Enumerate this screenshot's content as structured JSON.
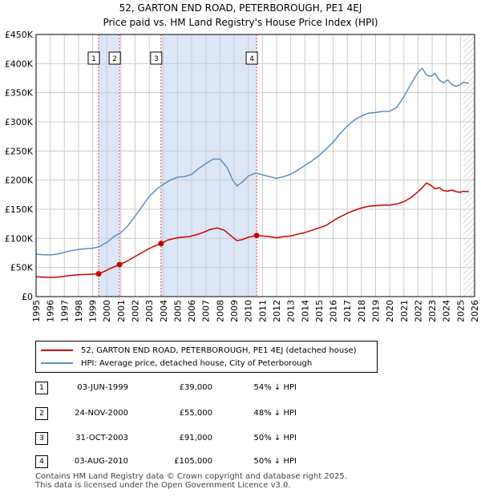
{
  "title_line1": "52, GARTON END ROAD, PETERBOROUGH, PE1 4EJ",
  "title_line2": "Price paid vs. HM Land Registry's House Price Index (HPI)",
  "colors": {
    "property": "#cc0000",
    "hpi": "#5b8ec2",
    "shade": "#dde6f7",
    "marker_line": "#cc0000",
    "grid": "#cccccc"
  },
  "chart_data": {
    "type": "line",
    "x_range": [
      1995,
      2026
    ],
    "ylim": [
      0,
      450000
    ],
    "y_ticks": [
      0,
      50000,
      100000,
      150000,
      200000,
      250000,
      300000,
      350000,
      400000,
      450000
    ],
    "y_tick_labels": [
      "£0",
      "£50K",
      "£100K",
      "£150K",
      "£200K",
      "£250K",
      "£300K",
      "£350K",
      "£400K",
      "£450K"
    ],
    "x_ticks": [
      1995,
      1996,
      1997,
      1998,
      1999,
      2000,
      2001,
      2002,
      2003,
      2004,
      2005,
      2006,
      2007,
      2008,
      2009,
      2010,
      2011,
      2012,
      2013,
      2014,
      2015,
      2016,
      2017,
      2018,
      2019,
      2020,
      2021,
      2022,
      2023,
      2024,
      2025,
      2026
    ],
    "shaded_periods": [
      [
        1999.42,
        2000.9
      ],
      [
        2003.83,
        2010.59
      ]
    ],
    "hatched_from": 2025.2,
    "sale_markers": [
      {
        "label": "1",
        "x": 1999.42,
        "y": 39000
      },
      {
        "label": "2",
        "x": 2000.9,
        "y": 55000
      },
      {
        "label": "3",
        "x": 2003.83,
        "y": 91000
      },
      {
        "label": "4",
        "x": 2010.59,
        "y": 105000
      }
    ],
    "series": [
      {
        "name": "52, GARTON END ROAD, PETERBOROUGH, PE1 4EJ (detached house)",
        "color": "#cc0000",
        "x": [
          1995,
          1995.5,
          1996,
          1996.5,
          1997,
          1997.5,
          1998,
          1998.5,
          1999,
          1999.42,
          1999.8,
          2000.3,
          2000.9,
          2001.3,
          2001.8,
          2002.3,
          2002.8,
          2003.3,
          2003.83,
          2004.3,
          2004.8,
          2005.3,
          2005.8,
          2006.3,
          2006.8,
          2007.3,
          2007.8,
          2008.3,
          2008.8,
          2009.2,
          2009.6,
          2010,
          2010.59,
          2011,
          2011.5,
          2012,
          2012.5,
          2013,
          2013.5,
          2014,
          2014.5,
          2015,
          2015.5,
          2016,
          2016.5,
          2017,
          2017.5,
          2018,
          2018.5,
          2019,
          2019.5,
          2020,
          2020.5,
          2021,
          2021.5,
          2022,
          2022.3,
          2022.6,
          2022.9,
          2023.2,
          2023.5,
          2023.8,
          2024.1,
          2024.4,
          2024.7,
          2025,
          2025.2,
          2025.6
        ],
        "values": [
          34000,
          33500,
          33000,
          33500,
          35000,
          36500,
          37500,
          38000,
          38500,
          39000,
          43000,
          49000,
          55000,
          59000,
          66000,
          73000,
          80000,
          86000,
          91000,
          97000,
          100000,
          102000,
          103000,
          106000,
          110000,
          115000,
          118000,
          114000,
          104000,
          96000,
          98000,
          102000,
          105000,
          104000,
          103000,
          101000,
          103000,
          104000,
          107000,
          110000,
          114000,
          118000,
          122000,
          130000,
          137000,
          143000,
          148000,
          152000,
          155000,
          156000,
          157000,
          157000,
          159000,
          163000,
          170000,
          180000,
          187000,
          195000,
          191000,
          185000,
          187000,
          182000,
          181000,
          183000,
          180000,
          179000,
          181000,
          180000
        ]
      },
      {
        "name": "HPI: Average price, detached house, City of Peterborough",
        "color": "#5b8ec2",
        "x": [
          1995,
          1995.5,
          1996,
          1996.5,
          1997,
          1997.5,
          1998,
          1998.5,
          1999,
          1999.5,
          2000,
          2000.5,
          2001,
          2001.5,
          2002,
          2002.5,
          2003,
          2003.5,
          2004,
          2004.5,
          2005,
          2005.5,
          2006,
          2006.5,
          2007,
          2007.5,
          2008,
          2008.5,
          2008.9,
          2009.2,
          2009.6,
          2010,
          2010.5,
          2011,
          2011.5,
          2012,
          2012.5,
          2013,
          2013.5,
          2014,
          2014.5,
          2015,
          2015.5,
          2016,
          2016.5,
          2017,
          2017.5,
          2018,
          2018.5,
          2019,
          2019.5,
          2020,
          2020.5,
          2021,
          2021.5,
          2022,
          2022.3,
          2022.6,
          2022.9,
          2023.2,
          2023.5,
          2023.8,
          2024.1,
          2024.4,
          2024.7,
          2025,
          2025.2,
          2025.6
        ],
        "values": [
          73000,
          72000,
          71500,
          73000,
          76000,
          79000,
          81000,
          82000,
          83000,
          86000,
          93000,
          103000,
          110000,
          122000,
          138000,
          155000,
          172000,
          184000,
          193000,
          200000,
          205000,
          206000,
          210000,
          220000,
          228000,
          236000,
          236000,
          222000,
          200000,
          190000,
          197000,
          207000,
          212000,
          209000,
          206000,
          203000,
          206000,
          210000,
          217000,
          225000,
          233000,
          242000,
          253000,
          265000,
          280000,
          293000,
          303000,
          310000,
          315000,
          316000,
          318000,
          318000,
          325000,
          343000,
          365000,
          385000,
          392000,
          380000,
          378000,
          383000,
          372000,
          367000,
          372000,
          364000,
          361000,
          364000,
          368000,
          366000
        ]
      }
    ]
  },
  "sales_table": [
    {
      "num": "1",
      "date": "03-JUN-1999",
      "price": "£39,000",
      "hpi": "54% ↓ HPI"
    },
    {
      "num": "2",
      "date": "24-NOV-2000",
      "price": "£55,000",
      "hpi": "48% ↓ HPI"
    },
    {
      "num": "3",
      "date": "31-OCT-2003",
      "price": "£91,000",
      "hpi": "50% ↓ HPI"
    },
    {
      "num": "4",
      "date": "03-AUG-2010",
      "price": "£105,000",
      "hpi": "50% ↓ HPI"
    }
  ],
  "footer_line1": "Contains HM Land Registry data © Crown copyright and database right 2025.",
  "footer_line2": "This data is licensed under the Open Government Licence v3.0."
}
